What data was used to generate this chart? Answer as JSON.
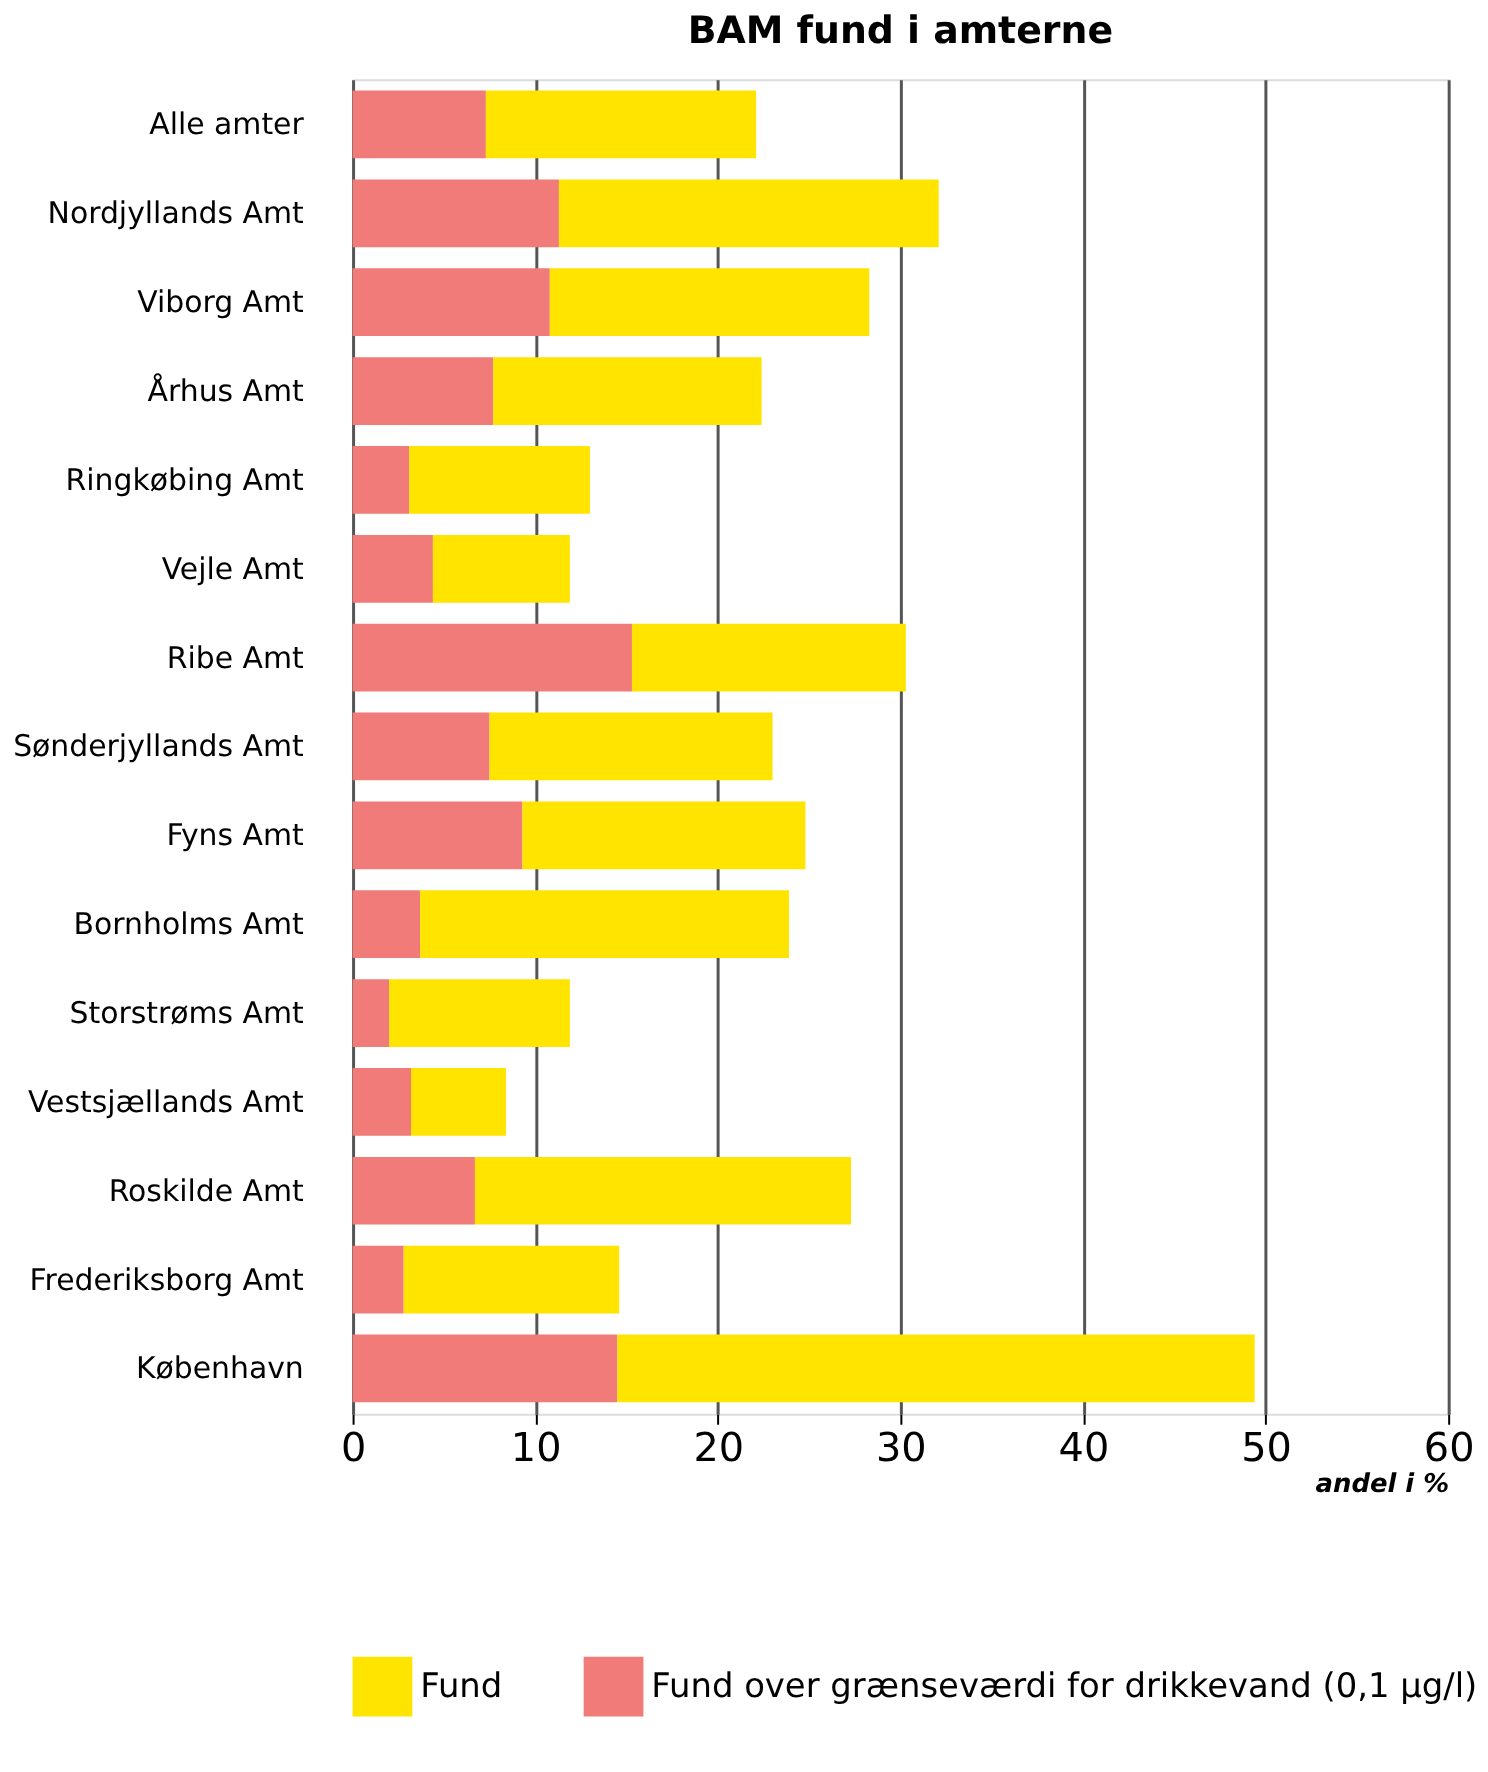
{
  "chart_data": {
    "type": "bar",
    "orientation": "horizontal",
    "stacked": true,
    "title": "BAM fund i amterne",
    "xlabel": "andel i %",
    "categories": [
      "Alle amter",
      "Nordjyllands Amt",
      "Viborg Amt",
      "Århus Amt",
      "Ringkøbing Amt",
      "Vejle Amt",
      "Ribe Amt",
      "Sønderjyllands Amt",
      "Fyns Amt",
      "Bornholms Amt",
      "Storstrøms Amt",
      "Vestsjællands Amt",
      "Roskilde Amt",
      "Frederiksborg Amt",
      "København"
    ],
    "series": [
      {
        "name": "Fund over grænseværdi for drikkevand (0,1 µg/l)",
        "color": "#f07b78",
        "values": [
          7.3,
          11.3,
          10.8,
          7.7,
          3.1,
          4.4,
          15.3,
          7.5,
          9.3,
          3.7,
          2.0,
          3.2,
          6.7,
          2.8,
          14.5
        ]
      },
      {
        "name": "Fund",
        "color": "#ffe400",
        "values": [
          14.8,
          20.8,
          17.5,
          14.7,
          9.9,
          7.5,
          15.0,
          15.5,
          15.5,
          20.2,
          9.9,
          5.2,
          20.6,
          11.8,
          34.9
        ]
      }
    ],
    "xlim": [
      0,
      60
    ],
    "xticks": [
      0,
      10,
      20,
      30,
      40,
      50,
      60
    ],
    "grid": "x",
    "legend": "bottom"
  }
}
